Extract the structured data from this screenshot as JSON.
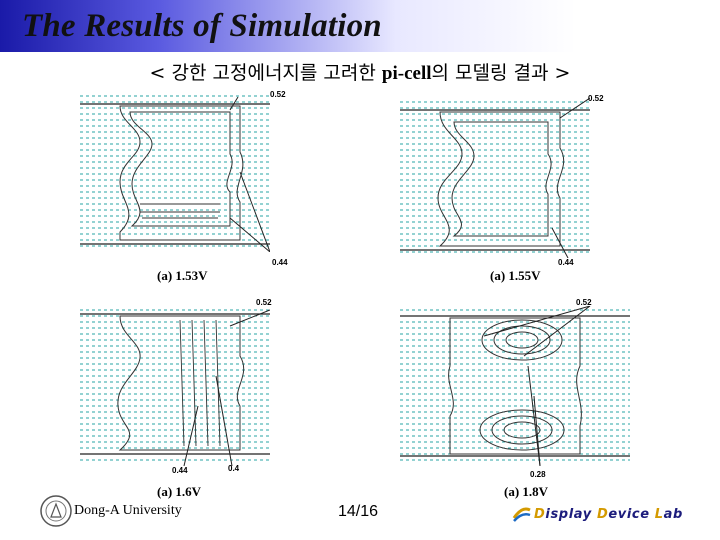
{
  "slide": {
    "title": "The Results of Simulation",
    "subtitle_prefix": "< 강한 고정에너지를 고려한 ",
    "subtitle_latin": "pi-cell",
    "subtitle_suffix": "의 모델링 결과 >"
  },
  "panels": [
    {
      "caption": "(a) 1.53V",
      "labels": [
        "0.52",
        "0.44"
      ]
    },
    {
      "caption": "(a) 1.55V",
      "labels": [
        "0.52",
        "0.44"
      ]
    },
    {
      "caption": "(a) 1.6V",
      "labels": [
        "0.52",
        "0.44",
        "0.4"
      ]
    },
    {
      "caption": "(a) 1.8V",
      "labels": [
        "0.52",
        "0.28"
      ]
    }
  ],
  "footer": {
    "university": "Dong-A University",
    "page": "14/16",
    "lab_d1": "D",
    "lab_r1": "isplay ",
    "lab_d2": "D",
    "lab_r2": "evice ",
    "lab_l": "L",
    "lab_r3": "ab"
  },
  "colors": {
    "grid": "#2aa6a6",
    "title_bar": "#1a1aa8",
    "lab_text": "#1c1c7c",
    "lab_accent": "#d49a00"
  },
  "icons": [
    "university-seal-icon",
    "lab-logo-icon"
  ]
}
